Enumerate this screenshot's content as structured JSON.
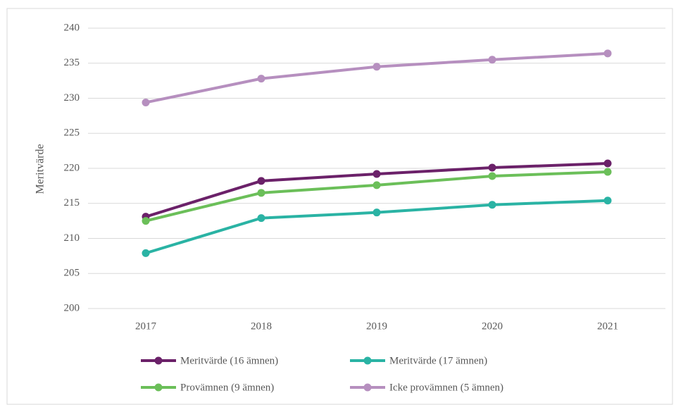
{
  "chart_data": {
    "type": "line",
    "y_label": "Meritvärde",
    "categories": [
      "2017",
      "2018",
      "2019",
      "2020",
      "2021"
    ],
    "series": [
      {
        "name": "Meritvärde (16 ämnen)",
        "color": "#6b2169",
        "values": [
          213.1,
          218.2,
          219.2,
          220.1,
          220.7
        ]
      },
      {
        "name": "Meritvärde (17 ämnen)",
        "color": "#2ab3a4",
        "values": [
          207.9,
          212.9,
          213.7,
          214.8,
          215.4
        ]
      },
      {
        "name": "Provämnen (9 ämnen)",
        "color": "#6bbf59",
        "values": [
          212.5,
          216.5,
          217.6,
          218.9,
          219.5
        ]
      },
      {
        "name": "Icke provämnen (5 ämnen)",
        "color": "#b68fbf",
        "values": [
          229.4,
          232.8,
          234.5,
          235.5,
          236.4
        ]
      }
    ],
    "ylim": [
      200,
      240
    ],
    "yticks": [
      200,
      205,
      210,
      215,
      220,
      225,
      230,
      235,
      240
    ],
    "grid": true,
    "legend": "bottom"
  }
}
